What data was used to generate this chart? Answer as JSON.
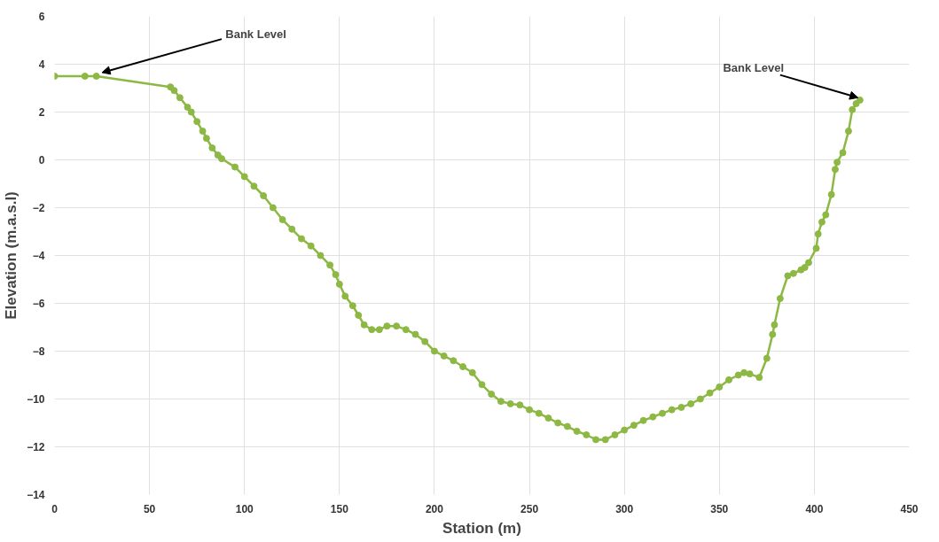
{
  "chart_data": {
    "type": "line",
    "xlabel": "Station (m)",
    "ylabel": "Elevation (m.a.s.l)",
    "x": [
      0,
      16,
      22,
      61,
      63,
      66,
      70,
      72,
      75,
      78,
      80,
      83,
      86,
      88,
      95,
      100,
      105,
      110,
      115,
      120,
      125,
      130,
      135,
      140,
      145,
      148,
      150,
      153,
      157,
      160,
      163,
      167,
      171,
      175,
      180,
      185,
      190,
      195,
      200,
      205,
      210,
      215,
      220,
      225,
      230,
      235,
      240,
      245,
      250,
      255,
      260,
      265,
      270,
      275,
      280,
      285,
      290,
      295,
      300,
      305,
      310,
      315,
      320,
      325,
      330,
      335,
      340,
      345,
      350,
      355,
      360,
      363,
      366,
      371,
      375,
      378,
      379,
      382,
      386,
      389,
      393,
      395,
      397,
      401,
      402,
      404,
      406,
      409,
      411,
      412,
      415,
      418,
      420,
      422,
      424
    ],
    "series": [
      {
        "color": "#8db843",
        "values": [
          3.5,
          3.5,
          3.5,
          3.05,
          2.9,
          2.6,
          2.2,
          2.0,
          1.6,
          1.2,
          0.9,
          0.5,
          0.2,
          0.05,
          -0.3,
          -0.7,
          -1.1,
          -1.5,
          -2.0,
          -2.5,
          -2.9,
          -3.3,
          -3.6,
          -4.0,
          -4.4,
          -4.8,
          -5.2,
          -5.7,
          -6.1,
          -6.5,
          -6.9,
          -7.1,
          -7.1,
          -6.95,
          -6.95,
          -7.1,
          -7.3,
          -7.6,
          -8.0,
          -8.2,
          -8.4,
          -8.65,
          -8.9,
          -9.4,
          -9.8,
          -10.1,
          -10.2,
          -10.25,
          -10.45,
          -10.6,
          -10.8,
          -11.0,
          -11.15,
          -11.35,
          -11.5,
          -11.7,
          -11.7,
          -11.5,
          -11.3,
          -11.1,
          -10.9,
          -10.75,
          -10.6,
          -10.45,
          -10.35,
          -10.2,
          -10.0,
          -9.75,
          -9.5,
          -9.2,
          -9.0,
          -8.9,
          -8.95,
          -9.1,
          -8.3,
          -7.3,
          -6.9,
          -5.8,
          -4.85,
          -4.75,
          -4.6,
          -4.5,
          -4.3,
          -3.7,
          -3.1,
          -2.6,
          -2.3,
          -1.45,
          -0.4,
          -0.1,
          0.3,
          1.2,
          2.1,
          2.35,
          2.5
        ]
      }
    ],
    "xlim": [
      0,
      450
    ],
    "xticks": [
      0,
      50,
      100,
      150,
      200,
      250,
      300,
      350,
      400,
      450
    ],
    "ylim": [
      -14,
      6
    ],
    "yticks": [
      -14,
      -12,
      -10,
      -8,
      -6,
      -4,
      -2,
      0,
      2,
      4,
      6
    ],
    "grid": true,
    "marker": "circle",
    "line_style": "solid",
    "annotations": [
      {
        "text": "Bank Level",
        "x": 22,
        "y": 3.5
      },
      {
        "text": "Bank Level",
        "x": 424,
        "y": 2.5
      }
    ]
  }
}
